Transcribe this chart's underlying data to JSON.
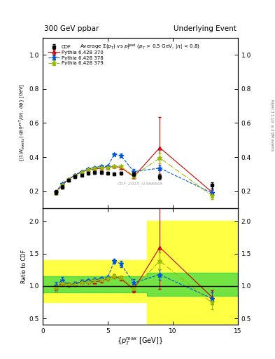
{
  "title_left": "300 GeV ppbar",
  "title_right": "Underlying Event",
  "plot_title": "Average $\\Sigma(p_T)$ vs $p_T^\\mathrm{lead}$ ($p_T$ > 0.5 GeV, $|\\eta|$ < 0.8)",
  "ylabel_main": "{(1/N_{events})} dp^{sumT}_T/d\\eta, d\\phi [GeV]",
  "ylabel_ratio": "Ratio to CDF",
  "xlabel": "{p_T^{max} [GeV]}",
  "watermark": "CDF_2015_I1388868",
  "right_label": "Rivet 3.1.10, ≥ 2.6M events",
  "xlim": [
    0,
    15
  ],
  "ylim_main": [
    0.1,
    1.1
  ],
  "ylim_ratio": [
    0.4,
    2.2
  ],
  "yticks_main": [
    0.2,
    0.4,
    0.6,
    0.8,
    1.0
  ],
  "yticks_ratio": [
    0.5,
    1.0,
    1.5,
    2.0
  ],
  "xticks": [
    0,
    5,
    10,
    15
  ],
  "cdf_x": [
    1.0,
    1.5,
    2.0,
    2.5,
    3.0,
    3.5,
    4.0,
    4.5,
    5.0,
    5.5,
    6.0,
    7.0,
    9.0,
    13.0
  ],
  "cdf_y": [
    0.195,
    0.225,
    0.265,
    0.285,
    0.295,
    0.305,
    0.31,
    0.31,
    0.305,
    0.3,
    0.305,
    0.3,
    0.285,
    0.235
  ],
  "cdf_yerr": [
    0.012,
    0.01,
    0.008,
    0.008,
    0.008,
    0.007,
    0.007,
    0.007,
    0.007,
    0.007,
    0.008,
    0.01,
    0.015,
    0.018
  ],
  "py370_x": [
    1.0,
    1.5,
    2.0,
    2.5,
    3.0,
    3.5,
    4.0,
    4.5,
    5.0,
    5.5,
    6.0,
    7.0,
    9.0,
    13.0
  ],
  "py370_y": [
    0.19,
    0.235,
    0.27,
    0.295,
    0.315,
    0.325,
    0.33,
    0.335,
    0.34,
    0.345,
    0.34,
    0.285,
    0.455,
    0.195
  ],
  "py370_yerr": [
    0.003,
    0.003,
    0.003,
    0.003,
    0.003,
    0.003,
    0.003,
    0.003,
    0.003,
    0.003,
    0.005,
    0.01,
    0.18,
    0.02
  ],
  "py378_x": [
    1.0,
    1.5,
    2.0,
    2.5,
    3.0,
    3.5,
    4.0,
    4.5,
    5.0,
    5.5,
    6.0,
    7.0,
    9.0,
    13.0
  ],
  "py378_y": [
    0.195,
    0.245,
    0.27,
    0.295,
    0.315,
    0.33,
    0.34,
    0.345,
    0.345,
    0.415,
    0.41,
    0.315,
    0.335,
    0.19
  ],
  "py378_yerr": [
    0.003,
    0.003,
    0.003,
    0.003,
    0.003,
    0.003,
    0.003,
    0.003,
    0.003,
    0.007,
    0.01,
    0.015,
    0.015,
    0.015
  ],
  "py379_x": [
    1.0,
    1.5,
    2.0,
    2.5,
    3.0,
    3.5,
    4.0,
    4.5,
    5.0,
    5.5,
    6.0,
    7.0,
    9.0,
    13.0
  ],
  "py379_y": [
    0.19,
    0.235,
    0.27,
    0.29,
    0.31,
    0.325,
    0.335,
    0.34,
    0.34,
    0.345,
    0.345,
    0.29,
    0.395,
    0.175
  ],
  "py379_yerr": [
    0.003,
    0.003,
    0.003,
    0.003,
    0.003,
    0.003,
    0.003,
    0.003,
    0.003,
    0.003,
    0.005,
    0.01,
    0.03,
    0.02
  ],
  "color_cdf": "#000000",
  "color_370": "#cc0000",
  "color_378": "#0055dd",
  "color_379": "#99bb00",
  "bg_green": "#00cc44",
  "bg_yellow": "#ffff44",
  "band_edges": [
    0,
    1,
    2,
    3,
    4,
    5,
    6,
    7,
    8,
    9,
    10,
    15
  ],
  "band_yellow_lo": [
    0.75,
    0.75,
    0.75,
    0.75,
    0.75,
    0.75,
    0.75,
    0.75,
    0.4,
    0.4,
    0.4,
    0.4
  ],
  "band_yellow_hi": [
    1.4,
    1.4,
    1.4,
    1.4,
    1.4,
    1.4,
    1.4,
    1.4,
    2.0,
    2.0,
    2.0,
    2.0
  ],
  "band_green_lo": [
    0.9,
    0.9,
    0.9,
    0.9,
    0.9,
    0.9,
    0.9,
    0.9,
    0.85,
    0.85,
    0.85,
    0.85
  ],
  "band_green_hi": [
    1.15,
    1.15,
    1.15,
    1.15,
    1.15,
    1.15,
    1.15,
    1.15,
    1.2,
    1.2,
    1.2,
    1.2
  ]
}
